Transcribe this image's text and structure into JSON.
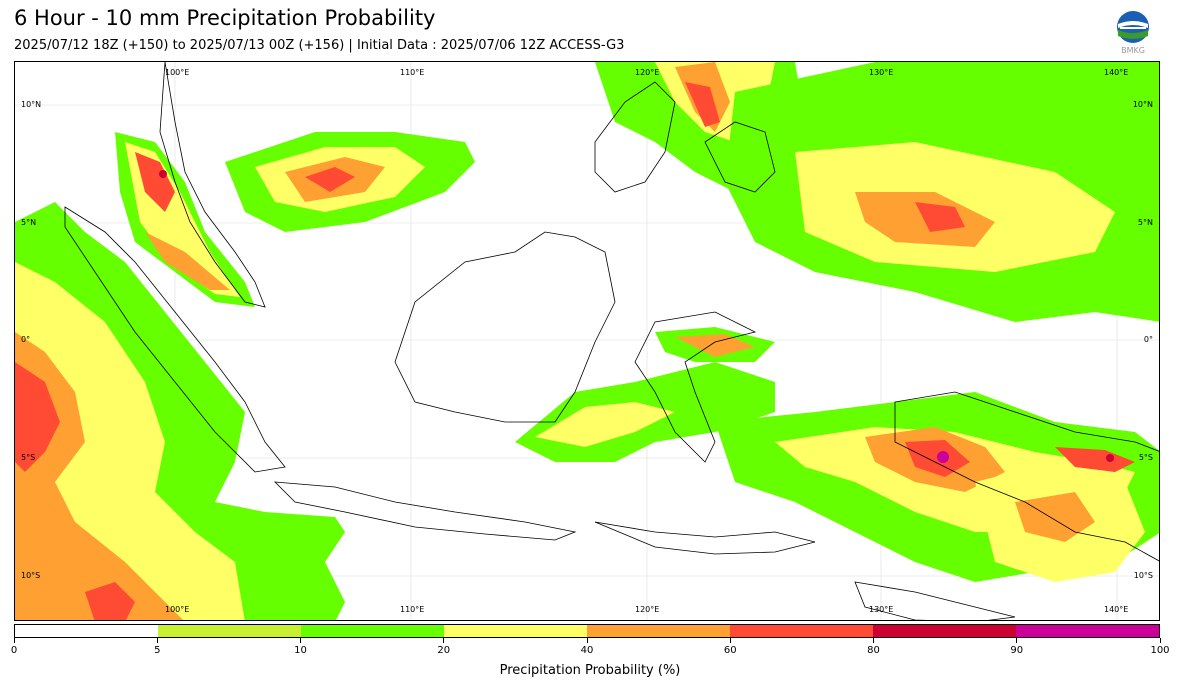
{
  "header": {
    "title": "6 Hour - 10 mm Precipitation Probability",
    "subtitle": "2025/07/12 18Z (+150) to 2025/07/13 00Z (+156) | Initial Data : 2025/07/06 12Z ACCESS-G3",
    "logo_text": "BMKG"
  },
  "map": {
    "lon_labels_top": [
      "100°E",
      "110°E",
      "120°E",
      "130°E",
      "140°E"
    ],
    "lon_labels_bottom": [
      "100°E",
      "110°E",
      "120°E",
      "130°E",
      "140°E"
    ],
    "lat_labels_left": [
      "10°N",
      "5°N",
      "0°",
      "5°S",
      "10°S"
    ],
    "lat_labels_right": [
      "10°N",
      "5°N",
      "0°",
      "5°S",
      "10°S"
    ]
  },
  "colorbar": {
    "label": "Precipitation Probability (%)",
    "ticks": [
      "0",
      "5",
      "10",
      "20",
      "40",
      "60",
      "80",
      "90",
      "100"
    ],
    "colors": [
      "#ffffff",
      "#c8f032",
      "#66ff00",
      "#ffff66",
      "#ffa033",
      "#ff4b33",
      "#cc0033",
      "#cc0099"
    ]
  }
}
